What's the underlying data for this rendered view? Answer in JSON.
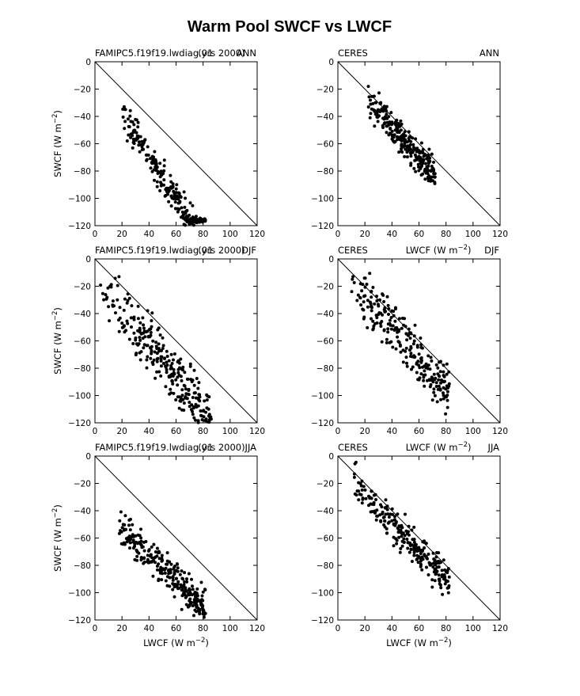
{
  "title": "Warm Pool SWCF vs LWCF",
  "xlabel": "LWCF (W m",
  "ylabel": "SWCF (W m",
  "unit_exp": "−2",
  "model_name": "FAMIPC5.f19f19.lwdiag.01",
  "obs_name": "CERES",
  "chart_data": [
    {
      "type": "scatter",
      "left_label": "FAMIPC5.f19f19.lwdiag.01",
      "center_label": "(yrs 2000)",
      "right_label": "ANN",
      "xlim": [
        0,
        120
      ],
      "ylim": [
        -120,
        0
      ],
      "xticks": [
        0,
        20,
        40,
        60,
        80,
        100,
        120
      ],
      "yticks": [
        0,
        -20,
        -40,
        -60,
        -80,
        -100,
        -120
      ],
      "reference_line": "y = -x",
      "show_xlabel": false,
      "show_ylabel": true,
      "cloud": {
        "x_range": [
          20,
          82
        ],
        "start_y": -38,
        "slope": -1.55,
        "spread": 8,
        "n": 260
      }
    },
    {
      "type": "scatter",
      "left_label": "CERES",
      "center_label": "",
      "right_label": "ANN",
      "xlim": [
        0,
        120
      ],
      "ylim": [
        -120,
        0
      ],
      "xticks": [
        0,
        20,
        40,
        60,
        80,
        100,
        120
      ],
      "yticks": [
        0,
        -20,
        -40,
        -60,
        -80,
        -100,
        -120
      ],
      "reference_line": "y = -x",
      "show_xlabel": false,
      "show_ylabel": false,
      "cloud": {
        "x_range": [
          22,
          72
        ],
        "start_y": -28,
        "slope": -1.1,
        "spread": 8,
        "n": 260
      }
    },
    {
      "type": "scatter",
      "left_label": "FAMIPC5.f19f19.lwdiag.01",
      "center_label": "(yrs 2000)",
      "right_label": "DJF",
      "xlim": [
        0,
        120
      ],
      "ylim": [
        -120,
        0
      ],
      "xticks": [
        0,
        20,
        40,
        60,
        80,
        100,
        120
      ],
      "yticks": [
        0,
        -20,
        -40,
        -60,
        -80,
        -100,
        -120
      ],
      "reference_line": "y = -x",
      "show_xlabel": false,
      "show_ylabel": true,
      "cloud": {
        "x_range": [
          4,
          86
        ],
        "start_y": -20,
        "slope": -1.2,
        "spread": 14,
        "n": 280
      }
    },
    {
      "type": "scatter",
      "left_label": "CERES",
      "center_label": "LWCF (W m",
      "right_label": "DJF",
      "xlim": [
        0,
        120
      ],
      "ylim": [
        -120,
        0
      ],
      "xticks": [
        0,
        20,
        40,
        60,
        80,
        100,
        120
      ],
      "yticks": [
        0,
        -20,
        -40,
        -60,
        -80,
        -100,
        -120
      ],
      "reference_line": "y = -x",
      "show_xlabel": false,
      "show_ylabel": false,
      "cloud": {
        "x_range": [
          10,
          83
        ],
        "start_y": -18,
        "slope": -1.1,
        "spread": 12,
        "n": 250
      }
    },
    {
      "type": "scatter",
      "left_label": "FAMIPC5.f19f19.lwdiag.01",
      "center_label": "(yrs 2000)",
      "right_label": "JJA",
      "xlim": [
        0,
        120
      ],
      "ylim": [
        -120,
        0
      ],
      "xticks": [
        0,
        20,
        40,
        60,
        80,
        100,
        120
      ],
      "yticks": [
        0,
        -20,
        -40,
        -60,
        -80,
        -100,
        -120
      ],
      "reference_line": "y = -x",
      "show_xlabel": true,
      "show_ylabel": true,
      "cloud": {
        "x_range": [
          18,
          82
        ],
        "start_y": -52,
        "slope": -0.95,
        "spread": 9,
        "n": 270
      }
    },
    {
      "type": "scatter",
      "left_label": "CERES",
      "center_label": "LWCF (W m",
      "right_label": "JJA",
      "xlim": [
        0,
        120
      ],
      "ylim": [
        -120,
        0
      ],
      "xticks": [
        0,
        20,
        40,
        60,
        80,
        100,
        120
      ],
      "yticks": [
        0,
        -20,
        -40,
        -60,
        -80,
        -100,
        -120
      ],
      "reference_line": "y = -x",
      "show_xlabel": true,
      "show_ylabel": false,
      "cloud": {
        "x_range": [
          12,
          83
        ],
        "start_y": -20,
        "slope": -1.05,
        "spread": 9,
        "n": 250
      }
    }
  ]
}
